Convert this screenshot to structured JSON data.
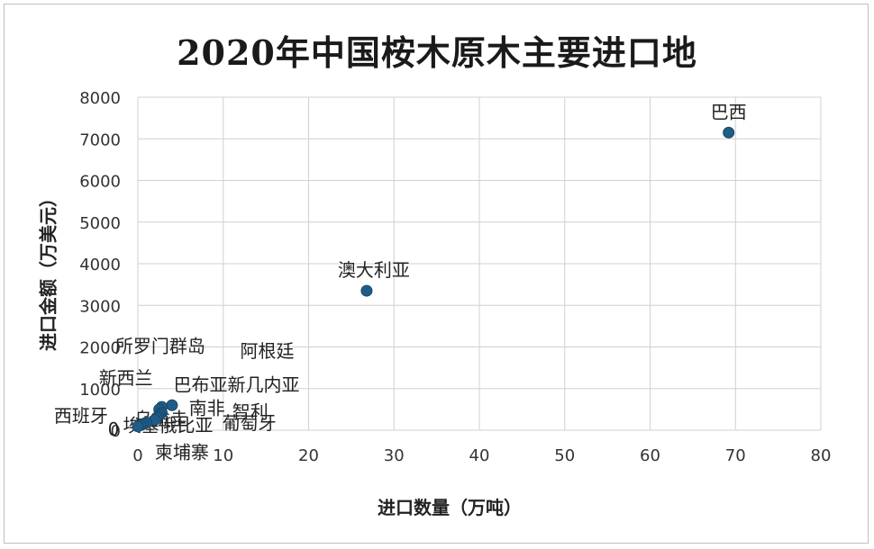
{
  "chart_data": {
    "type": "scatter",
    "title": "2020年中国桉木原木主要进口地",
    "xlabel": "进口数量（万吨）",
    "ylabel": "进口金额（万美元）",
    "xlim": [
      0,
      80
    ],
    "ylim": [
      0,
      8000
    ],
    "xticks": [
      "0",
      "10",
      "20",
      "30",
      "40",
      "50",
      "60",
      "70",
      "80"
    ],
    "yticks": [
      "0",
      "1000",
      "2000",
      "3000",
      "4000",
      "5000",
      "6000",
      "7000",
      "8000"
    ],
    "grid": true,
    "marker_color": "#1f5c87",
    "points": [
      {
        "label": "巴西",
        "x": 69.2,
        "y": 7150
      },
      {
        "label": "澳大利亚",
        "x": 26.8,
        "y": 3350
      },
      {
        "label": "所罗门群岛",
        "x": 4.0,
        "y": 600
      },
      {
        "label": "阿根廷",
        "x": 2.8,
        "y": 560
      },
      {
        "label": "新西兰",
        "x": 2.5,
        "y": 500
      },
      {
        "label": "巴布亚新几内亚",
        "x": 2.8,
        "y": 420
      },
      {
        "label": "南非",
        "x": 2.6,
        "y": 380
      },
      {
        "label": "智利",
        "x": 2.4,
        "y": 330
      },
      {
        "label": "西班牙",
        "x": 2.2,
        "y": 300
      },
      {
        "label": "乌拉圭",
        "x": 2.0,
        "y": 250
      },
      {
        "label": "埃塞俄比亚",
        "x": 1.0,
        "y": 180
      },
      {
        "label": "葡萄牙",
        "x": 0.6,
        "y": 150
      },
      {
        "label": "柬埔寨",
        "x": 0.3,
        "y": 120
      },
      {
        "label": "0",
        "x": 0.0,
        "y": 90
      }
    ]
  }
}
